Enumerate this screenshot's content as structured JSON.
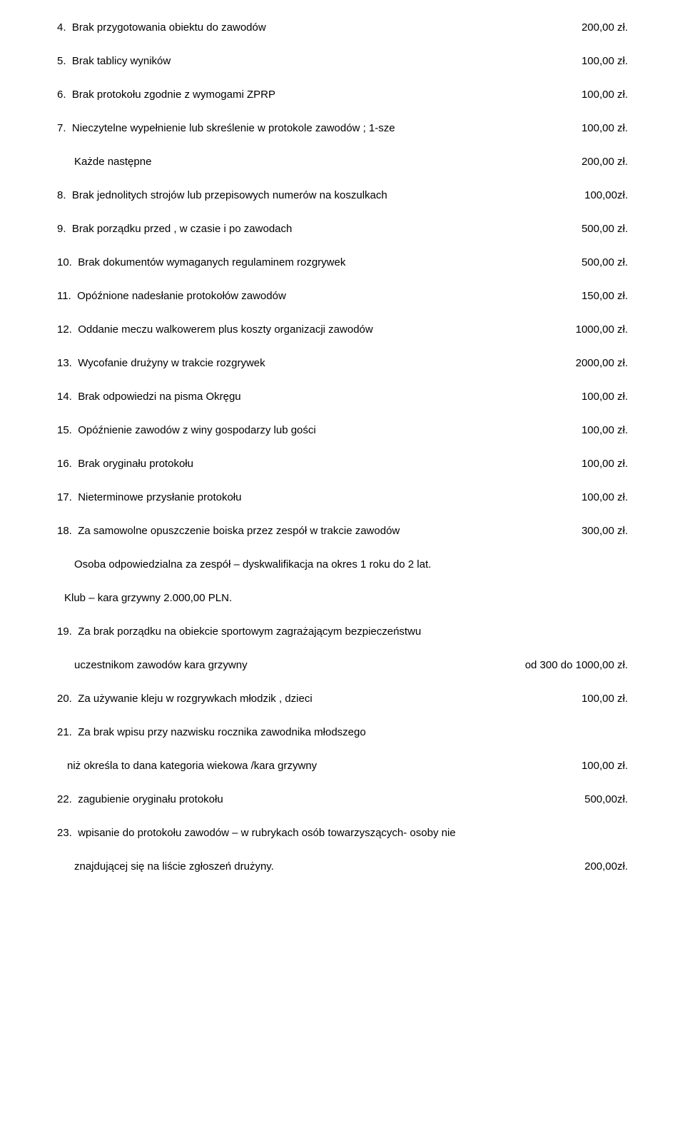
{
  "items": [
    {
      "num": "4.",
      "text": "Brak przygotowania obiektu do zawodów",
      "amount": "200,00 zł."
    },
    {
      "num": "5.",
      "text": "Brak tablicy wyników",
      "amount": "100,00 zł."
    },
    {
      "num": "6.",
      "text": "Brak protokołu zgodnie z wymogami ZPRP",
      "amount": "100,00 zł."
    },
    {
      "num": "7.",
      "text": "Nieczytelne wypełnienie lub skreślenie w protokole zawodów ; 1-sze",
      "amount": "100,00 zł."
    }
  ],
  "sub7": {
    "text": "Każde następne",
    "amount": "200,00 zł."
  },
  "items2": [
    {
      "num": "8.",
      "text": "Brak jednolitych strojów lub przepisowych numerów na koszulkach",
      "amount": "100,00zł."
    },
    {
      "num": "9.",
      "text": "Brak porządku przed , w czasie i po zawodach",
      "amount": "500,00 zł."
    },
    {
      "num": "10.",
      "text": "Brak dokumentów wymaganych regulaminem rozgrywek",
      "amount": "500,00 zł."
    },
    {
      "num": "11.",
      "text": "Opóźnione   nadesłanie protokołów zawodów",
      "amount": "150,00 zł."
    },
    {
      "num": "12.",
      "text": "Oddanie meczu walkowerem plus koszty organizacji zawodów",
      "amount": "1000,00 zł."
    },
    {
      "num": "13.",
      "text": "Wycofanie drużyny w trakcie rozgrywek",
      "amount": "2000,00 zł."
    },
    {
      "num": "14.",
      "text": "Brak odpowiedzi na pisma Okręgu",
      "amount": "100,00 zł."
    },
    {
      "num": "15.",
      "text": "Opóźnienie zawodów z winy gospodarzy lub gości",
      "amount": "100,00 zł."
    },
    {
      "num": "16.",
      "text": "Brak oryginału protokołu",
      "amount": "100,00 zł."
    },
    {
      "num": "17.",
      "text": "Nieterminowe przysłanie protokołu",
      "amount": "100,00 zł."
    },
    {
      "num": "18.",
      "text": "Za samowolne opuszczenie boiska przez zespół w trakcie zawodów",
      "amount": "300,00 zł."
    }
  ],
  "note18a": "Osoba odpowiedzialna za zespół – dyskwalifikacja na okres  1 roku do 2 lat.",
  "note18b": "Klub – kara grzywny 2.000,00  PLN.",
  "item19": {
    "num": "19.",
    "line1": "Za brak porządku na obiekcie sportowym  zagrażającym bezpieczeństwu",
    "line2": "uczestnikom zawodów kara grzywny",
    "amount": "od 300 do 1000,00 zł."
  },
  "item20": {
    "num": "20.",
    "text": "Za używanie kleju w rozgrywkach młodzik , dzieci",
    "amount": "100,00 zł."
  },
  "item21": {
    "num": "21.",
    "line1": "Za brak wpisu przy nazwisku rocznika zawodnika  młodszego",
    "line2": "niż określa to dana kategoria wiekowa /kara grzywny",
    "amount": "100,00 zł."
  },
  "item22": {
    "num": "22.",
    "text": "zagubienie oryginału protokołu",
    "amount": "500,00zł."
  },
  "item23": {
    "num": "23.",
    "line1": "wpisanie do protokołu zawodów – w rubrykach osób towarzyszących- osoby nie",
    "line2": "znajdującej się na liście zgłoszeń drużyny.",
    "amount": "200,00zł."
  }
}
